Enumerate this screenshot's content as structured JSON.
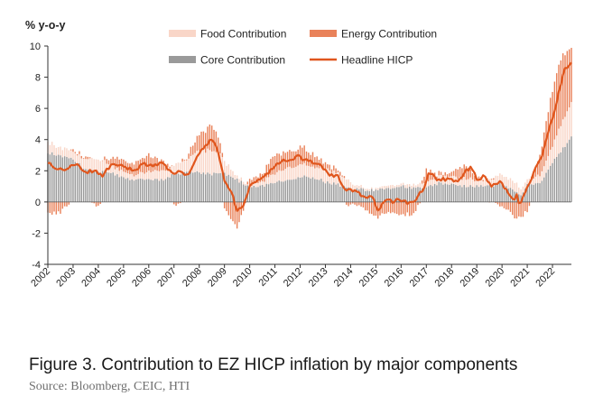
{
  "chart_data": {
    "type": "bar+line",
    "title": "",
    "ylabel": "% y-o-y",
    "xlabel": "",
    "ylim": [
      -4,
      10
    ],
    "yticks": [
      10,
      8,
      6,
      4,
      2,
      0,
      -2,
      -4
    ],
    "x_range": [
      2002.0,
      2022.75
    ],
    "x_ticks": [
      "2002",
      "2003",
      "2004",
      "2005",
      "2006",
      "2007",
      "2008",
      "2009",
      "2010",
      "2011",
      "2012",
      "2013",
      "2014",
      "2015",
      "2016",
      "2017",
      "2018",
      "2019",
      "2020",
      "2021",
      "2022"
    ],
    "legend": {
      "placement": "top",
      "food": "Food Contribution",
      "energy": "Energy Contribution",
      "core": "Core Contribution",
      "headline": "Headline HICP"
    },
    "colors": {
      "food": "#f9d6c8",
      "energy": "#e9825a",
      "core": "#9a9a9a",
      "headline": "#e0561d",
      "axis": "#333333"
    },
    "series_keypoints": {
      "headline": [
        [
          2002.0,
          2.6
        ],
        [
          2002.3,
          2.2
        ],
        [
          2002.6,
          2.1
        ],
        [
          2002.9,
          2.3
        ],
        [
          2003.2,
          2.4
        ],
        [
          2003.5,
          1.9
        ],
        [
          2003.9,
          2.0
        ],
        [
          2004.2,
          1.7
        ],
        [
          2004.5,
          2.4
        ],
        [
          2004.9,
          2.3
        ],
        [
          2005.2,
          2.1
        ],
        [
          2005.5,
          2.1
        ],
        [
          2005.8,
          2.5
        ],
        [
          2006.1,
          2.3
        ],
        [
          2006.5,
          2.5
        ],
        [
          2006.9,
          1.9
        ],
        [
          2007.2,
          1.9
        ],
        [
          2007.6,
          1.8
        ],
        [
          2007.9,
          3.0
        ],
        [
          2008.2,
          3.5
        ],
        [
          2008.5,
          4.0
        ],
        [
          2008.7,
          3.6
        ],
        [
          2009.0,
          1.3
        ],
        [
          2009.3,
          0.6
        ],
        [
          2009.5,
          -0.6
        ],
        [
          2009.8,
          -0.1
        ],
        [
          2010.0,
          1.0
        ],
        [
          2010.4,
          1.5
        ],
        [
          2010.7,
          1.8
        ],
        [
          2011.0,
          2.3
        ],
        [
          2011.3,
          2.7
        ],
        [
          2011.6,
          2.6
        ],
        [
          2011.9,
          2.9
        ],
        [
          2012.3,
          2.6
        ],
        [
          2012.6,
          2.5
        ],
        [
          2012.9,
          2.2
        ],
        [
          2013.2,
          1.7
        ],
        [
          2013.5,
          1.6
        ],
        [
          2013.8,
          0.8
        ],
        [
          2014.1,
          0.7
        ],
        [
          2014.5,
          0.4
        ],
        [
          2014.9,
          0.2
        ],
        [
          2015.1,
          -0.6
        ],
        [
          2015.4,
          0.2
        ],
        [
          2015.7,
          0.0
        ],
        [
          2015.9,
          0.2
        ],
        [
          2016.3,
          -0.1
        ],
        [
          2016.6,
          0.2
        ],
        [
          2016.9,
          0.9
        ],
        [
          2017.1,
          2.0
        ],
        [
          2017.4,
          1.4
        ],
        [
          2017.7,
          1.5
        ],
        [
          2017.9,
          1.4
        ],
        [
          2018.3,
          1.3
        ],
        [
          2018.6,
          2.1
        ],
        [
          2018.8,
          2.2
        ],
        [
          2019.0,
          1.4
        ],
        [
          2019.3,
          1.7
        ],
        [
          2019.6,
          1.0
        ],
        [
          2019.9,
          1.3
        ],
        [
          2020.2,
          0.7
        ],
        [
          2020.4,
          0.1
        ],
        [
          2020.6,
          0.4
        ],
        [
          2020.7,
          -0.3
        ],
        [
          2021.0,
          0.9
        ],
        [
          2021.3,
          2.0
        ],
        [
          2021.6,
          3.0
        ],
        [
          2021.9,
          5.0
        ],
        [
          2022.1,
          5.9
        ],
        [
          2022.3,
          7.4
        ],
        [
          2022.5,
          8.6
        ],
        [
          2022.75,
          8.9
        ]
      ],
      "core": [
        [
          2002.0,
          3.2
        ],
        [
          2002.5,
          2.9
        ],
        [
          2003.0,
          2.7
        ],
        [
          2003.5,
          2.1
        ],
        [
          2004.0,
          2.0
        ],
        [
          2004.5,
          1.9
        ],
        [
          2005.0,
          1.5
        ],
        [
          2005.5,
          1.4
        ],
        [
          2006.0,
          1.4
        ],
        [
          2006.5,
          1.4
        ],
        [
          2007.0,
          1.8
        ],
        [
          2007.5,
          1.9
        ],
        [
          2008.0,
          1.9
        ],
        [
          2008.5,
          1.8
        ],
        [
          2009.0,
          1.8
        ],
        [
          2009.5,
          1.4
        ],
        [
          2010.0,
          1.0
        ],
        [
          2010.5,
          1.0
        ],
        [
          2011.0,
          1.2
        ],
        [
          2011.5,
          1.5
        ],
        [
          2012.0,
          1.6
        ],
        [
          2012.5,
          1.6
        ],
        [
          2013.0,
          1.3
        ],
        [
          2013.5,
          1.1
        ],
        [
          2014.0,
          0.8
        ],
        [
          2014.5,
          0.8
        ],
        [
          2015.0,
          0.7
        ],
        [
          2015.5,
          0.9
        ],
        [
          2016.0,
          1.0
        ],
        [
          2016.5,
          0.9
        ],
        [
          2017.0,
          0.9
        ],
        [
          2017.5,
          1.2
        ],
        [
          2018.0,
          1.1
        ],
        [
          2018.5,
          1.0
        ],
        [
          2019.0,
          1.0
        ],
        [
          2019.5,
          1.0
        ],
        [
          2020.0,
          1.2
        ],
        [
          2020.5,
          0.7
        ],
        [
          2020.8,
          0.4
        ],
        [
          2021.0,
          1.2
        ],
        [
          2021.5,
          1.2
        ],
        [
          2022.0,
          2.5
        ],
        [
          2022.5,
          3.6
        ],
        [
          2022.75,
          4.2
        ]
      ],
      "food": [
        [
          2002.0,
          0.7
        ],
        [
          2002.5,
          0.5
        ],
        [
          2003.0,
          0.5
        ],
        [
          2003.5,
          0.7
        ],
        [
          2004.0,
          0.8
        ],
        [
          2004.5,
          0.5
        ],
        [
          2005.0,
          0.4
        ],
        [
          2005.5,
          0.3
        ],
        [
          2006.0,
          0.5
        ],
        [
          2006.5,
          0.6
        ],
        [
          2007.0,
          0.6
        ],
        [
          2007.5,
          0.8
        ],
        [
          2008.0,
          1.4
        ],
        [
          2008.5,
          1.5
        ],
        [
          2008.8,
          1.3
        ],
        [
          2009.0,
          0.8
        ],
        [
          2009.5,
          0.2
        ],
        [
          2010.0,
          0.1
        ],
        [
          2010.5,
          0.3
        ],
        [
          2011.0,
          0.6
        ],
        [
          2011.5,
          0.8
        ],
        [
          2012.0,
          0.8
        ],
        [
          2012.5,
          0.7
        ],
        [
          2013.0,
          0.8
        ],
        [
          2013.5,
          0.7
        ],
        [
          2014.0,
          0.4
        ],
        [
          2014.5,
          0.1
        ],
        [
          2015.0,
          0.1
        ],
        [
          2015.5,
          0.2
        ],
        [
          2016.0,
          0.2
        ],
        [
          2016.5,
          0.2
        ],
        [
          2017.0,
          0.3
        ],
        [
          2017.5,
          0.4
        ],
        [
          2018.0,
          0.5
        ],
        [
          2018.5,
          0.5
        ],
        [
          2019.0,
          0.4
        ],
        [
          2019.5,
          0.4
        ],
        [
          2020.0,
          0.6
        ],
        [
          2020.5,
          0.6
        ],
        [
          2021.0,
          0.3
        ],
        [
          2021.5,
          0.5
        ],
        [
          2022.0,
          1.1
        ],
        [
          2022.5,
          2.0
        ],
        [
          2022.75,
          2.2
        ]
      ],
      "energy": [
        [
          2002.0,
          -0.8
        ],
        [
          2002.5,
          -0.7
        ],
        [
          2003.0,
          0.2
        ],
        [
          2003.5,
          0.1
        ],
        [
          2004.0,
          -0.3
        ],
        [
          2004.5,
          0.5
        ],
        [
          2005.0,
          0.7
        ],
        [
          2005.5,
          0.9
        ],
        [
          2006.0,
          1.0
        ],
        [
          2006.5,
          0.7
        ],
        [
          2007.0,
          -0.2
        ],
        [
          2007.5,
          0.2
        ],
        [
          2008.0,
          1.1
        ],
        [
          2008.5,
          1.6
        ],
        [
          2008.8,
          0.9
        ],
        [
          2009.0,
          -0.4
        ],
        [
          2009.5,
          -1.6
        ],
        [
          2010.0,
          0.5
        ],
        [
          2010.5,
          0.5
        ],
        [
          2011.0,
          1.1
        ],
        [
          2011.5,
          1.1
        ],
        [
          2012.0,
          1.1
        ],
        [
          2012.5,
          0.8
        ],
        [
          2013.0,
          0.4
        ],
        [
          2013.5,
          0.2
        ],
        [
          2014.0,
          -0.2
        ],
        [
          2014.5,
          -0.4
        ],
        [
          2015.0,
          -1.0
        ],
        [
          2015.5,
          -0.6
        ],
        [
          2016.0,
          -0.8
        ],
        [
          2016.5,
          -0.8
        ],
        [
          2017.0,
          0.8
        ],
        [
          2017.5,
          0.2
        ],
        [
          2018.0,
          0.3
        ],
        [
          2018.5,
          0.9
        ],
        [
          2019.0,
          0.2
        ],
        [
          2019.5,
          0.1
        ],
        [
          2020.0,
          -0.2
        ],
        [
          2020.5,
          -1.0
        ],
        [
          2020.8,
          -0.9
        ],
        [
          2021.0,
          -0.6
        ],
        [
          2021.5,
          1.3
        ],
        [
          2022.0,
          3.6
        ],
        [
          2022.3,
          4.3
        ],
        [
          2022.5,
          4.0
        ],
        [
          2022.75,
          3.5
        ]
      ]
    }
  },
  "caption": {
    "title": "Figure 3. Contribution to EZ HICP inflation by major components",
    "source": "Source: Bloomberg, CEIC, HTI"
  }
}
